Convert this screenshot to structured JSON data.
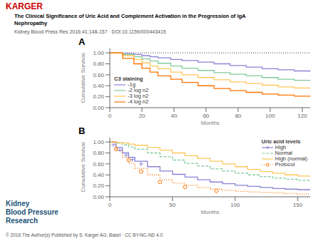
{
  "title": "The Clinical Significance of Uric Acid and Complement Activation in the Progression of IgA\nNephropathy",
  "subtitle": "Kidney Blood Press Res 2016;41:148-157 · DOI:10.1159/000443415",
  "annotations": [
    {
      "text": "KARGER",
      "color": "#CC0000"
    },
    {
      "text": "© 2016 The Author(s) Published by S. Karger AG, Basel · CC BY-NC-ND 4.0",
      "color": "#555555"
    },
    {
      "text": "Kidney\nBlood Pressure\nResearch",
      "color": "#1a5276"
    }
  ],
  "chart_data": [
    {
      "type": "line",
      "title": "A",
      "x_label": "Months",
      "y_label": "Cumulative Survival",
      "grid": false,
      "legend": "lower left",
      "legend_title": "C3 staining",
      "xlim": [
        0,
        125
      ],
      "xticks": [
        0,
        20,
        40,
        60,
        80,
        100,
        120
      ],
      "ylim": [
        0.0,
        1.08
      ],
      "yticks": [
        {
          "value": 0.0,
          "label": "0.00"
        },
        {
          "value": 0.2,
          "label": "0.20"
        },
        {
          "value": 0.4,
          "label": "0.40"
        },
        {
          "value": 0.6,
          "label": "0.60"
        },
        {
          "value": 0.8,
          "label": "0.80"
        },
        {
          "value": 1.0,
          "label": "1.00"
        }
      ],
      "hlines": [
        {
          "y": 1.0,
          "line_style": "dotted"
        }
      ],
      "x": [
        0,
        8,
        15,
        20,
        25,
        30,
        38,
        45,
        55,
        65,
        75,
        85,
        95,
        105,
        115,
        125
      ],
      "series": [
        {
          "name": "-1g",
          "type": "step",
          "color": "#8884d8",
          "line_style": "solid",
          "values": [
            1.0,
            0.99,
            0.97,
            0.95,
            0.93,
            0.91,
            0.88,
            0.86,
            0.83,
            0.8,
            0.77,
            0.74,
            0.71,
            0.69,
            0.67,
            0.65
          ]
        },
        {
          "name": "-2 log n2",
          "type": "step",
          "color": "#82ca9d",
          "line_style": "solid",
          "values": [
            1.0,
            0.97,
            0.93,
            0.89,
            0.85,
            0.81,
            0.76,
            0.72,
            0.68,
            0.64,
            0.61,
            0.58,
            0.55,
            0.52,
            0.5,
            0.48
          ]
        },
        {
          "name": "-3 log n2",
          "type": "step",
          "color": "#ffc658",
          "line_style": "solid",
          "values": [
            1.0,
            0.95,
            0.88,
            0.82,
            0.76,
            0.71,
            0.65,
            0.6,
            0.55,
            0.51,
            0.47,
            0.44,
            0.41,
            0.38,
            0.36,
            0.34
          ]
        },
        {
          "name": "-4 log n2",
          "type": "step",
          "color": "#ff7300",
          "line_style": "solid",
          "values": [
            1.0,
            0.9,
            0.8,
            0.72,
            0.65,
            0.58,
            0.52,
            0.46,
            0.4,
            0.35,
            0.31,
            0.28,
            0.25,
            0.23,
            0.21,
            0.2
          ]
        }
      ]
    },
    {
      "type": "line",
      "title": "B",
      "x_label": "Months",
      "y_label": "Cumulative Survival",
      "grid": false,
      "legend": "upper right",
      "legend_title": "Uric acid levels",
      "xlim": [
        0,
        160
      ],
      "xticks": [
        0,
        50,
        100,
        150
      ],
      "ylim": [
        0.0,
        1.08
      ],
      "yticks": [
        {
          "value": 0.0,
          "label": "0.00"
        },
        {
          "value": 0.2,
          "label": "0.20"
        },
        {
          "value": 0.4,
          "label": "0.40"
        },
        {
          "value": 0.6,
          "label": "0.60"
        },
        {
          "value": 0.8,
          "label": "0.80"
        },
        {
          "value": 1.0,
          "label": "1.00"
        }
      ],
      "x": [
        0,
        5,
        10,
        15,
        20,
        30,
        40,
        50,
        60,
        70,
        80,
        90,
        100,
        110,
        120,
        130,
        140,
        150,
        160
      ],
      "series": [
        {
          "name": "High",
          "type": "step",
          "color": "#8884d8",
          "line_style": "solid",
          "marker": "plus",
          "marker_x": [
            3,
            8,
            13,
            18,
            25
          ],
          "marker_y": [
            0.95,
            0.85,
            0.76,
            0.68,
            0.6
          ],
          "values": [
            1.0,
            0.9,
            0.8,
            0.72,
            0.65,
            0.55,
            0.47,
            0.41,
            0.36,
            0.31,
            0.27,
            0.24,
            0.21,
            0.19,
            0.17,
            0.15,
            0.14,
            0.13,
            0.12
          ]
        },
        {
          "name": "Normal",
          "type": "step",
          "color": "#82ca9d",
          "line_style": "dashed",
          "values": [
            1.0,
            0.98,
            0.95,
            0.91,
            0.87,
            0.8,
            0.73,
            0.67,
            0.61,
            0.56,
            0.51,
            0.47,
            0.43,
            0.4,
            0.37,
            0.34,
            0.32,
            0.3,
            0.28
          ]
        },
        {
          "name": "High (normal)",
          "type": "step",
          "color": "#ffc658",
          "line_style": "solid",
          "values": [
            1.0,
            0.99,
            0.98,
            0.96,
            0.94,
            0.9,
            0.85,
            0.8,
            0.75,
            0.7,
            0.65,
            0.6,
            0.55,
            0.5,
            0.46,
            0.43,
            0.4,
            0.38,
            0.36
          ]
        },
        {
          "name": "Protocol",
          "type": "step",
          "color": "#ff7300",
          "line_style": "dotted",
          "marker": "circle",
          "marker_x": [
            5,
            15,
            25,
            40,
            60,
            85
          ],
          "marker_y": [
            0.87,
            0.67,
            0.46,
            0.27,
            0.18,
            0.11
          ],
          "values": [
            1.0,
            0.85,
            0.72,
            0.61,
            0.52,
            0.4,
            0.31,
            0.25,
            0.21,
            0.17,
            0.14,
            0.12,
            0.1,
            0.09,
            0.08,
            0.07,
            0.06,
            0.05,
            0.05
          ]
        }
      ]
    }
  ]
}
